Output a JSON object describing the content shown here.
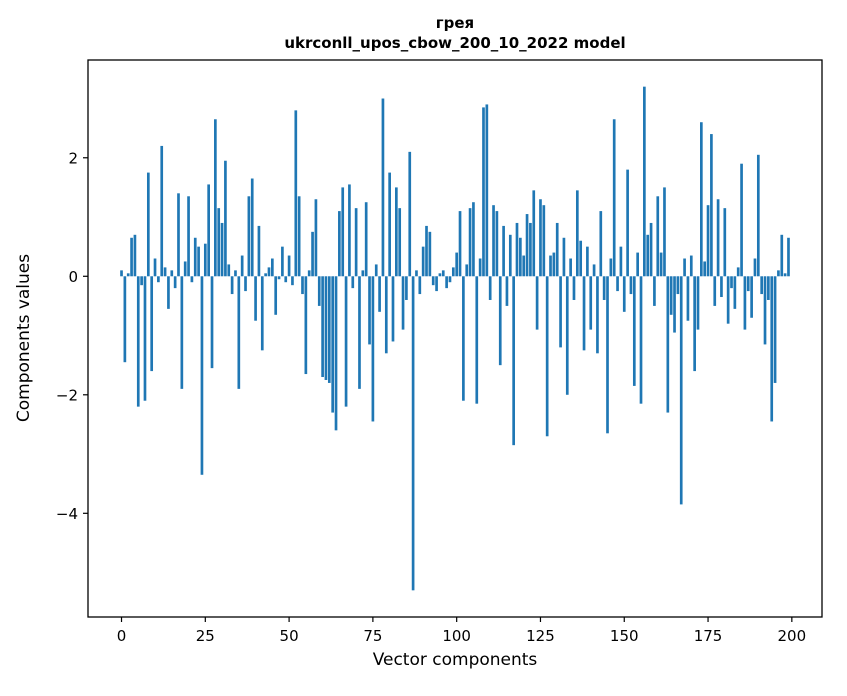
{
  "title": {
    "line1": "грея",
    "line2": "ukrconll_upos_cbow_200_10_2022 model"
  },
  "axes": {
    "xlabel": "Vector components",
    "ylabel": "Components values"
  },
  "chart_data": {
    "type": "bar",
    "title": "грея\nukrconll_upos_cbow_200_10_2022 model",
    "xlabel": "Vector components",
    "ylabel": "Components values",
    "bar_color": "#1f77b4",
    "grid": false,
    "legend": "none",
    "xlim": [
      -10,
      209
    ],
    "ylim": [
      -5.75,
      3.65
    ],
    "xticks": [
      0,
      25,
      50,
      75,
      100,
      125,
      150,
      175,
      200
    ],
    "yticks": [
      -4,
      -2,
      0,
      2
    ],
    "values": [
      0.1,
      -1.45,
      0.05,
      0.65,
      0.7,
      -2.2,
      -0.15,
      -2.1,
      1.75,
      -1.6,
      0.3,
      -0.1,
      2.2,
      0.15,
      -0.55,
      0.1,
      -0.2,
      1.4,
      -1.9,
      0.25,
      1.35,
      -0.1,
      0.65,
      0.5,
      -3.35,
      0.55,
      1.55,
      -1.55,
      2.65,
      1.15,
      0.9,
      1.95,
      0.2,
      -0.3,
      0.1,
      -1.9,
      0.35,
      -0.25,
      1.35,
      1.65,
      -0.75,
      0.85,
      -1.25,
      0.05,
      0.15,
      0.3,
      -0.65,
      -0.05,
      0.5,
      -0.1,
      0.35,
      -0.15,
      2.8,
      1.35,
      -0.3,
      -1.65,
      0.1,
      0.75,
      1.3,
      -0.5,
      -1.7,
      -1.75,
      -1.8,
      -2.3,
      -2.6,
      1.1,
      1.5,
      -2.2,
      1.55,
      -0.2,
      1.15,
      -1.9,
      0.1,
      1.25,
      -1.15,
      -2.45,
      0.2,
      -0.6,
      3.0,
      -1.3,
      1.75,
      -1.1,
      1.5,
      1.15,
      -0.9,
      -0.4,
      2.1,
      -5.3,
      0.1,
      -0.3,
      0.5,
      0.85,
      0.75,
      -0.15,
      -0.25,
      0.05,
      0.1,
      -0.2,
      -0.1,
      0.15,
      0.4,
      1.1,
      -2.1,
      0.2,
      1.15,
      1.25,
      -2.15,
      0.3,
      2.85,
      2.9,
      -0.4,
      1.2,
      1.1,
      -1.5,
      0.85,
      -0.5,
      0.7,
      -2.85,
      0.9,
      0.65,
      0.35,
      1.05,
      0.9,
      1.45,
      -0.9,
      1.3,
      1.2,
      -2.7,
      0.35,
      0.4,
      0.9,
      -1.2,
      0.65,
      -2.0,
      0.3,
      -0.4,
      1.45,
      0.6,
      -1.25,
      0.5,
      -0.9,
      0.2,
      -1.3,
      1.1,
      -0.4,
      -2.65,
      0.3,
      2.65,
      -0.25,
      0.5,
      -0.6,
      1.8,
      -0.3,
      -1.85,
      0.4,
      -2.15,
      3.2,
      0.7,
      0.9,
      -0.5,
      1.35,
      0.4,
      1.5,
      -2.3,
      -0.65,
      -0.95,
      -0.3,
      -3.85,
      0.3,
      -0.75,
      0.35,
      -1.6,
      -0.9,
      2.6,
      0.25,
      1.2,
      2.4,
      -0.5,
      1.3,
      -0.35,
      1.15,
      -0.8,
      -0.2,
      -0.55,
      0.15,
      1.9,
      -0.9,
      -0.25,
      -0.7,
      0.3,
      2.05,
      -0.3,
      -1.15,
      -0.4,
      -2.45,
      -1.8,
      0.1,
      0.7,
      0.05,
      0.65
    ]
  }
}
